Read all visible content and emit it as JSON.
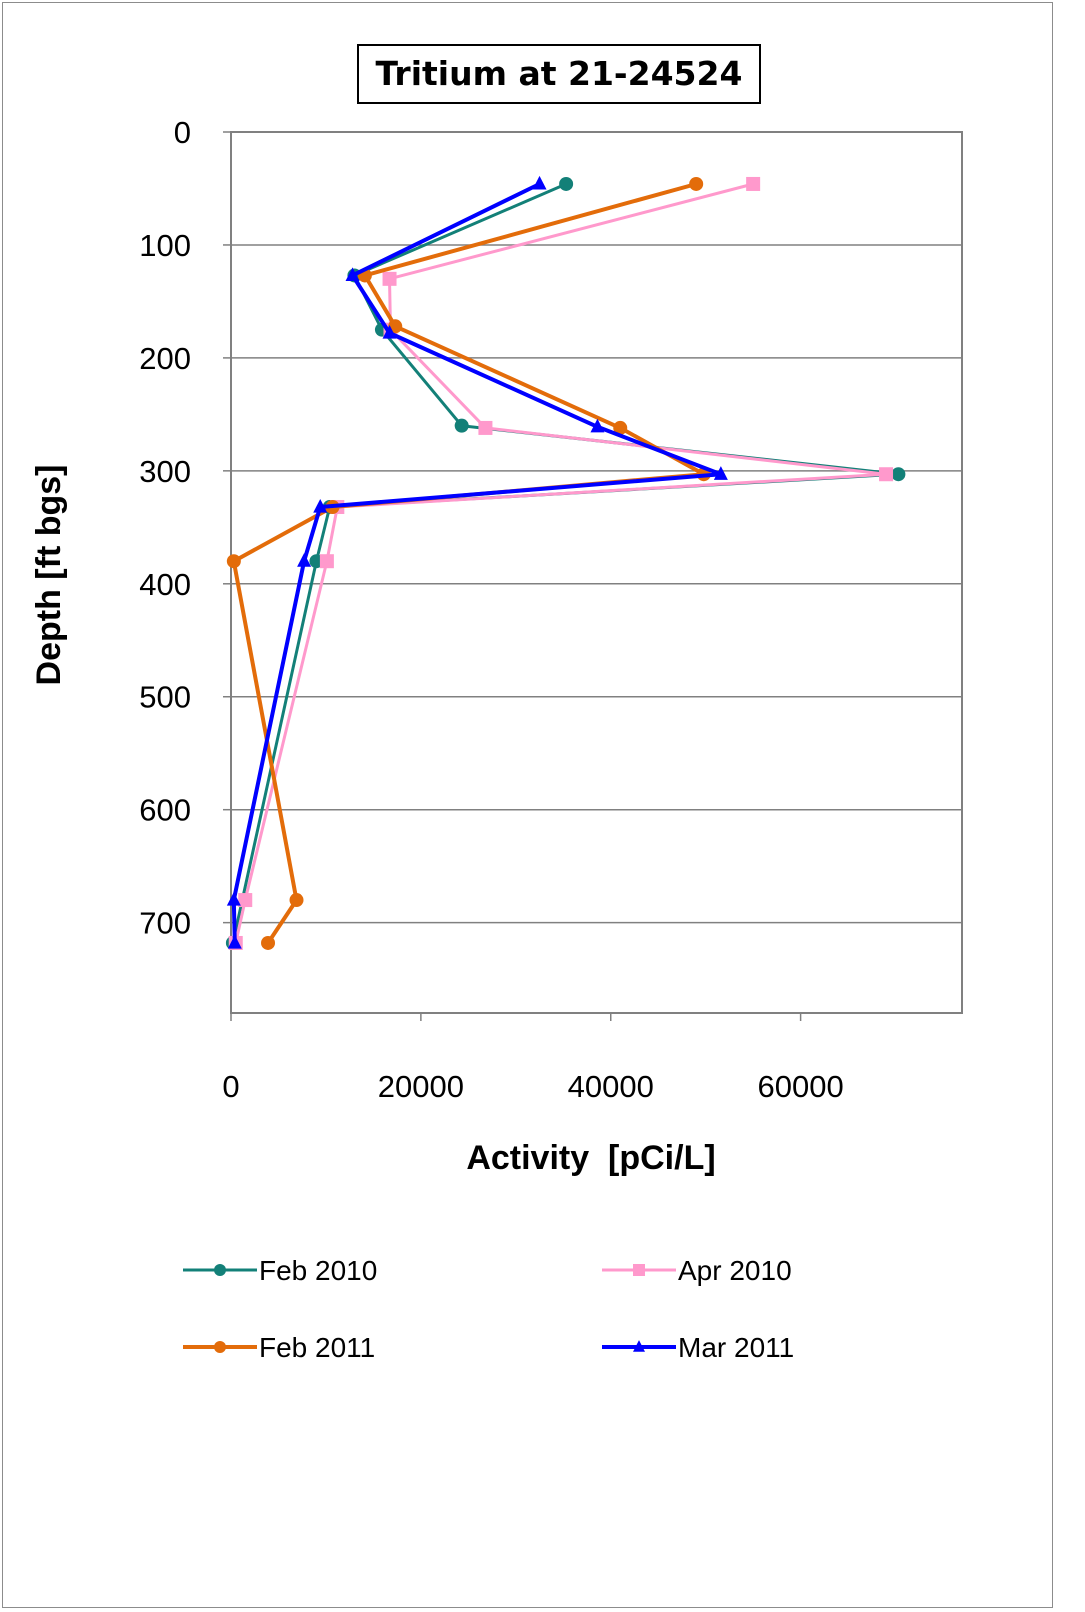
{
  "chart_data": {
    "type": "line",
    "title": "Tritium at 21-24524",
    "xlabel": "Activity  [pCi/L]",
    "ylabel": "Depth [ft bgs]",
    "xlim": [
      0,
      77000
    ],
    "ylim": [
      0,
      780
    ],
    "y_inverted": true,
    "x_ticks": [
      "0",
      "20000",
      "40000",
      "60000"
    ],
    "x_tick_values": [
      0,
      20000,
      40000,
      60000
    ],
    "y_ticks": [
      "0",
      "100",
      "200",
      "300",
      "400",
      "500",
      "600",
      "700"
    ],
    "y_tick_values": [
      0,
      100,
      200,
      300,
      400,
      500,
      600,
      700
    ],
    "grid": "horizontal",
    "legend_position": "bottom",
    "series": [
      {
        "name": "Feb 2010",
        "color": "#138078",
        "marker": "circle",
        "line_width": 3,
        "points": [
          [
            35300,
            46
          ],
          [
            13000,
            127
          ],
          [
            15900,
            175
          ],
          [
            24300,
            260
          ],
          [
            70300,
            303
          ],
          [
            10400,
            332
          ],
          [
            9000,
            380
          ],
          [
            200,
            718
          ]
        ]
      },
      {
        "name": "Apr 2010",
        "color": "#ff99cc",
        "marker": "square",
        "line_width": 3,
        "points": [
          [
            55000,
            46
          ],
          [
            16700,
            130
          ],
          [
            16800,
            175
          ],
          [
            26800,
            262
          ],
          [
            69000,
            303
          ],
          [
            11200,
            332
          ],
          [
            10100,
            380
          ],
          [
            1500,
            680
          ],
          [
            500,
            718
          ]
        ]
      },
      {
        "name": "Feb 2011",
        "color": "#e36c0a",
        "marker": "circle",
        "line_width": 4,
        "points": [
          [
            49000,
            46
          ],
          [
            14100,
            127
          ],
          [
            17300,
            172
          ],
          [
            41000,
            262
          ],
          [
            49800,
            303
          ],
          [
            10700,
            332
          ],
          [
            300,
            380
          ],
          [
            6900,
            680
          ],
          [
            3900,
            718
          ]
        ]
      },
      {
        "name": "Mar 2011",
        "color": "#0000ff",
        "marker": "triangle",
        "line_width": 4,
        "points": [
          [
            32500,
            46
          ],
          [
            12800,
            127
          ],
          [
            16700,
            178
          ],
          [
            38600,
            261
          ],
          [
            51600,
            303
          ],
          [
            9400,
            332
          ],
          [
            7700,
            380
          ],
          [
            300,
            680
          ],
          [
            400,
            718
          ]
        ]
      }
    ]
  }
}
